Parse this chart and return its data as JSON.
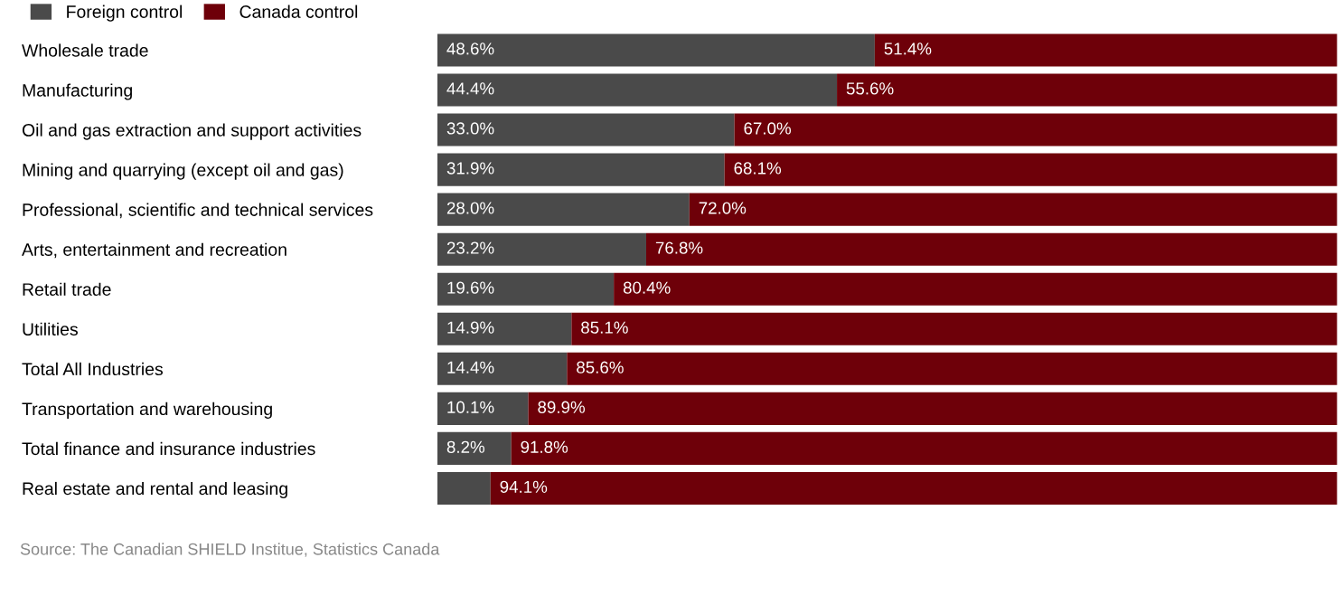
{
  "chart_data": {
    "type": "bar",
    "orientation": "horizontal",
    "stacked": true,
    "legend": "top left",
    "categories": [
      "Wholesale trade",
      "Manufacturing",
      "Oil and gas extraction and support activities",
      "Mining and quarrying (except oil and gas)",
      "Professional, scientific and technical services",
      "Arts, entertainment and recreation",
      "Retail trade",
      "Utilities",
      "Total All Industries",
      "Transportation and warehousing",
      "Total finance and insurance industries",
      "Real estate and rental and leasing"
    ],
    "series": [
      {
        "name": "Foreign control",
        "color": "#4a4a4a",
        "values": [
          48.6,
          44.4,
          33.0,
          31.9,
          28.0,
          23.2,
          19.6,
          14.9,
          14.4,
          10.1,
          8.2,
          5.9
        ],
        "value_labels": [
          "48.6%",
          "44.4%",
          "33.0%",
          "31.9%",
          "28.0%",
          "23.2%",
          "19.6%",
          "14.9%",
          "14.4%",
          "10.1%",
          "8.2%",
          null
        ]
      },
      {
        "name": "Canada control",
        "color": "#6e0009",
        "values": [
          51.4,
          55.6,
          67.0,
          68.1,
          72.0,
          76.8,
          80.4,
          85.1,
          85.6,
          89.9,
          91.8,
          94.1
        ],
        "value_labels": [
          "51.4%",
          "55.6%",
          "67.0%",
          "68.1%",
          "72.0%",
          "76.8%",
          "80.4%",
          "85.1%",
          "85.6%",
          "89.9%",
          "91.8%",
          "94.1%"
        ]
      }
    ],
    "annotations": [
      "Source: The Canadian SHIELD Institue, Statistics Canada"
    ]
  }
}
